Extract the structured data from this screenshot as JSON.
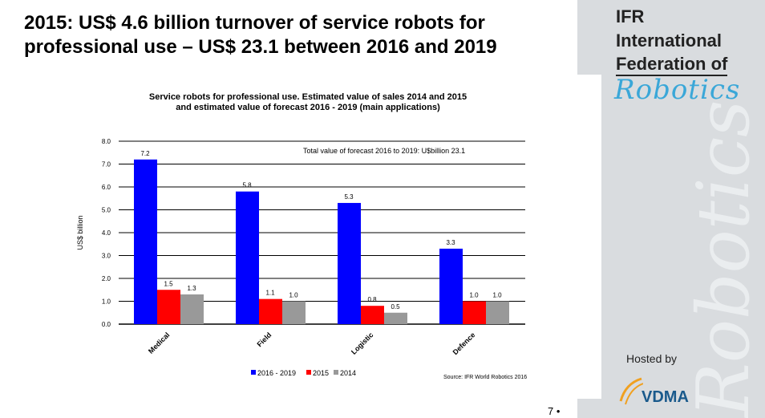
{
  "slide": {
    "title_line1": "2015: US$ 4.6 billion turnover of service robots for",
    "title_line2": "professional use – US$ 23.1 between 2016 and 2019",
    "page_number": "7 •"
  },
  "sidebar": {
    "logo_line1": "IFR",
    "logo_line2": "International",
    "logo_line3": "Federation of",
    "logo_script": "Robotics",
    "hosted_by": "Hosted by",
    "vdma_logo": "VDMA"
  },
  "colors": {
    "s2016_2019": "#0000ff",
    "s2015": "#ff0000",
    "s2014": "#999999",
    "sidebar": "#d9dcdf"
  },
  "chart_data": {
    "type": "bar",
    "title_line1": "Service robots for professional use. Estimated value of sales  2014 and 2015",
    "title_line2": "and estimated value of forecast 2016 - 2019 (main applications)",
    "ylabel": "US$ billion",
    "ylim": [
      0,
      8
    ],
    "yticks": [
      "0.0",
      "1.0",
      "2.0",
      "3.0",
      "4.0",
      "5.0",
      "6.0",
      "7.0",
      "8.0"
    ],
    "grid": true,
    "categories": [
      "Medical",
      "Field",
      "Logistic",
      "Defence"
    ],
    "series": [
      {
        "name": "2016 - 2019",
        "values": [
          7.2,
          5.8,
          5.3,
          3.3
        ],
        "labels": [
          "7.2",
          "5.8",
          "5.3",
          "3.3"
        ]
      },
      {
        "name": "2015",
        "values": [
          1.5,
          1.1,
          0.8,
          1.0
        ],
        "labels": [
          "1.5",
          "1.1",
          "0.8",
          "1.0"
        ]
      },
      {
        "name": "2014",
        "values": [
          1.3,
          1.0,
          0.5,
          1.0
        ],
        "labels": [
          "1.3",
          "1.0",
          "0.5",
          "1.0"
        ]
      }
    ],
    "annotation": "Total value of forecast 2016 to 2019: U$billion 23.1",
    "source": "Source: IFR World Robotics 2016",
    "legend_position": "bottom"
  }
}
